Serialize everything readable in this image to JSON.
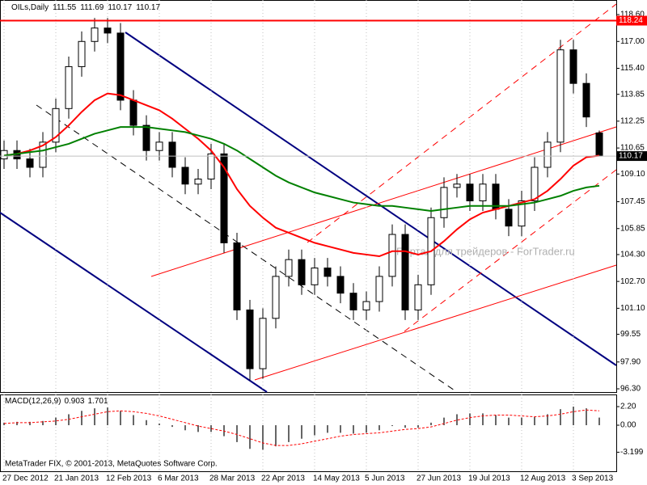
{
  "chart_data": {
    "type": "candlestick",
    "title": "OILs,Daily",
    "categories": [
      "27 Dec 2012",
      null,
      null,
      null,
      "21 Jan 2013",
      null,
      null,
      null,
      "12 Feb 2013",
      null,
      null,
      null,
      "6 Mar 2013",
      null,
      null,
      null,
      "28 Mar 2013",
      null,
      null,
      null,
      "22 Apr 2013",
      null,
      null,
      null,
      "14 May 2013",
      null,
      null,
      null,
      "5 Jun 2013",
      null,
      null,
      null,
      "27 Jun 2013",
      null,
      null,
      null,
      "19 Jul 2013",
      null,
      null,
      null,
      "12 Aug 2013",
      null,
      null,
      null,
      "3 Sep 2013",
      null,
      null
    ],
    "open": [
      110.0,
      110.5,
      110.0,
      109.5,
      111.0,
      113.0,
      115.5,
      117.0,
      117.8,
      117.5,
      113.5,
      112.0,
      110.5,
      111.0,
      109.5,
      108.5,
      108.8,
      110.3,
      105.0,
      101.0,
      97.5,
      100.5,
      103.0,
      104.0,
      102.5,
      103.5,
      103.0,
      102.0,
      101.0,
      101.5,
      103.0,
      105.5,
      101.0,
      102.5,
      106.5,
      108.3,
      108.5,
      107.5,
      108.5,
      107.0,
      106.0,
      107.5,
      109.5,
      111.0,
      116.5,
      114.5,
      111.55
    ],
    "high": [
      111.1,
      111.1,
      110.6,
      111.6,
      113.6,
      116.1,
      117.6,
      118.4,
      118.4,
      118.1,
      114.1,
      112.6,
      111.6,
      111.6,
      110.1,
      109.4,
      110.9,
      110.9,
      105.6,
      101.6,
      101.1,
      103.6,
      104.6,
      104.6,
      104.1,
      104.1,
      103.6,
      102.6,
      102.1,
      103.6,
      106.1,
      106.1,
      103.1,
      107.1,
      108.9,
      109.1,
      109.1,
      109.1,
      109.1,
      107.6,
      108.1,
      110.1,
      111.6,
      117.1,
      117.1,
      115.1,
      111.69
    ],
    "low": [
      109.4,
      109.4,
      108.9,
      108.9,
      110.4,
      112.4,
      114.9,
      116.4,
      116.9,
      112.9,
      111.4,
      109.9,
      109.9,
      108.9,
      107.9,
      107.9,
      108.2,
      104.4,
      100.4,
      96.8,
      96.9,
      99.9,
      102.4,
      101.9,
      101.9,
      102.4,
      101.4,
      100.4,
      100.4,
      100.9,
      102.4,
      100.4,
      100.4,
      101.9,
      105.9,
      107.7,
      106.9,
      106.9,
      106.4,
      105.4,
      105.4,
      106.9,
      108.9,
      110.4,
      113.9,
      111.9,
      110.17
    ],
    "close": [
      110.5,
      110.0,
      109.5,
      111.0,
      113.0,
      115.5,
      117.0,
      117.8,
      117.5,
      113.5,
      112.0,
      110.5,
      111.0,
      109.5,
      108.5,
      108.8,
      110.3,
      105.0,
      101.0,
      97.5,
      100.5,
      103.0,
      104.0,
      102.5,
      103.5,
      103.0,
      102.0,
      101.0,
      101.5,
      103.0,
      105.5,
      101.0,
      102.5,
      106.5,
      108.3,
      108.5,
      107.5,
      108.5,
      107.0,
      106.0,
      107.5,
      109.5,
      111.0,
      116.5,
      114.5,
      112.5,
      110.17
    ],
    "up_color": "#ffffff",
    "down_color": "#000000",
    "lines": [
      {
        "color": "#ff0000",
        "values": [
          110.2,
          110.3,
          110.5,
          110.8,
          111.3,
          112.0,
          112.8,
          113.5,
          113.9,
          113.8,
          113.5,
          113.2,
          112.9,
          112.4,
          111.8,
          111.2,
          110.5,
          109.5,
          108.2,
          107.2,
          106.5,
          105.9,
          105.6,
          105.3,
          105.0,
          104.8,
          104.6,
          104.4,
          104.3,
          104.2,
          104.5,
          104.5,
          104.3,
          104.5,
          105.1,
          105.8,
          106.4,
          106.8,
          107.0,
          107.2,
          107.4,
          107.6,
          108.1,
          108.8,
          109.6,
          110.1,
          110.2
        ]
      },
      {
        "color": "#008000",
        "values": [
          110.2,
          110.3,
          110.4,
          110.5,
          110.7,
          110.9,
          111.2,
          111.5,
          111.7,
          111.9,
          111.9,
          111.9,
          111.8,
          111.7,
          111.6,
          111.4,
          111.2,
          110.9,
          110.5,
          110.0,
          109.5,
          109.0,
          108.6,
          108.3,
          108.0,
          107.8,
          107.6,
          107.4,
          107.3,
          107.2,
          107.2,
          107.1,
          107.0,
          106.9,
          107.0,
          107.1,
          107.2,
          107.2,
          107.2,
          107.2,
          107.3,
          107.4,
          107.6,
          107.8,
          108.1,
          108.3,
          108.4
        ]
      }
    ],
    "hline": {
      "value": 118.24,
      "color": "#ff0000"
    },
    "ylim": [
      96.06,
      119.47
    ],
    "yticks": [
      {
        "value": 118.6,
        "label": "118.60"
      },
      {
        "value": 117.0,
        "label": "117.00"
      },
      {
        "value": 115.4,
        "label": "115.40"
      },
      {
        "value": 113.85,
        "label": "113.85"
      },
      {
        "value": 112.25,
        "label": "112.25"
      },
      {
        "value": 110.65,
        "label": "110.65"
      },
      {
        "value": 109.1,
        "label": "109.10"
      },
      {
        "value": 107.45,
        "label": "107.45"
      },
      {
        "value": 105.85,
        "label": "105.85"
      },
      {
        "value": 104.3,
        "label": "104.30"
      },
      {
        "value": 102.7,
        "label": "102.70"
      },
      {
        "value": 101.1,
        "label": "101.10"
      },
      {
        "value": 99.55,
        "label": "99.55"
      },
      {
        "value": 97.9,
        "label": "97.90"
      },
      {
        "value": 96.3,
        "label": "96.30"
      }
    ],
    "grid": true,
    "watermark": "Портал для трейдеров - ForTrader.ru",
    "copyright": "MetaTrader FIX, © 2001-2013, MetaQuotes Software Corp.",
    "macd": {
      "title": "MACD(12,26,9)",
      "color": "#000000",
      "signal_color": "#ff0000",
      "histogram": [
        0.3,
        0.4,
        0.4,
        0.5,
        0.9,
        1.3,
        1.7,
        2.0,
        2.1,
        1.7,
        1.2,
        0.6,
        0.2,
        -0.2,
        -0.6,
        -0.8,
        -0.8,
        -1.3,
        -2.0,
        -2.8,
        -2.9,
        -2.5,
        -2.0,
        -1.6,
        -1.2,
        -0.9,
        -0.9,
        -1.0,
        -0.9,
        -0.6,
        -0.1,
        -0.3,
        -0.3,
        0.3,
        0.9,
        1.3,
        1.4,
        1.4,
        1.2,
        0.9,
        0.9,
        1.0,
        1.3,
        1.9,
        2.2,
        2.0,
        0.903
      ],
      "signal": [
        0.2,
        0.3,
        0.3,
        0.4,
        0.5,
        0.7,
        1.0,
        1.3,
        1.6,
        1.7,
        1.6,
        1.4,
        1.1,
        0.7,
        0.3,
        -0.1,
        -0.4,
        -0.7,
        -1.1,
        -1.6,
        -2.1,
        -2.4,
        -2.4,
        -2.2,
        -1.9,
        -1.6,
        -1.3,
        -1.1,
        -1.0,
        -0.9,
        -0.7,
        -0.5,
        -0.4,
        -0.2,
        0.2,
        0.6,
        0.9,
        1.1,
        1.2,
        1.2,
        1.1,
        1.0,
        1.1,
        1.3,
        1.6,
        1.8,
        1.701
      ],
      "ylim": [
        -5.55,
        3.64
      ],
      "yticks": [
        {
          "value": 2.2,
          "label": "2.20"
        },
        {
          "value": 0,
          "label": "0.00"
        },
        -3.199
      ]
    }
  }
}
